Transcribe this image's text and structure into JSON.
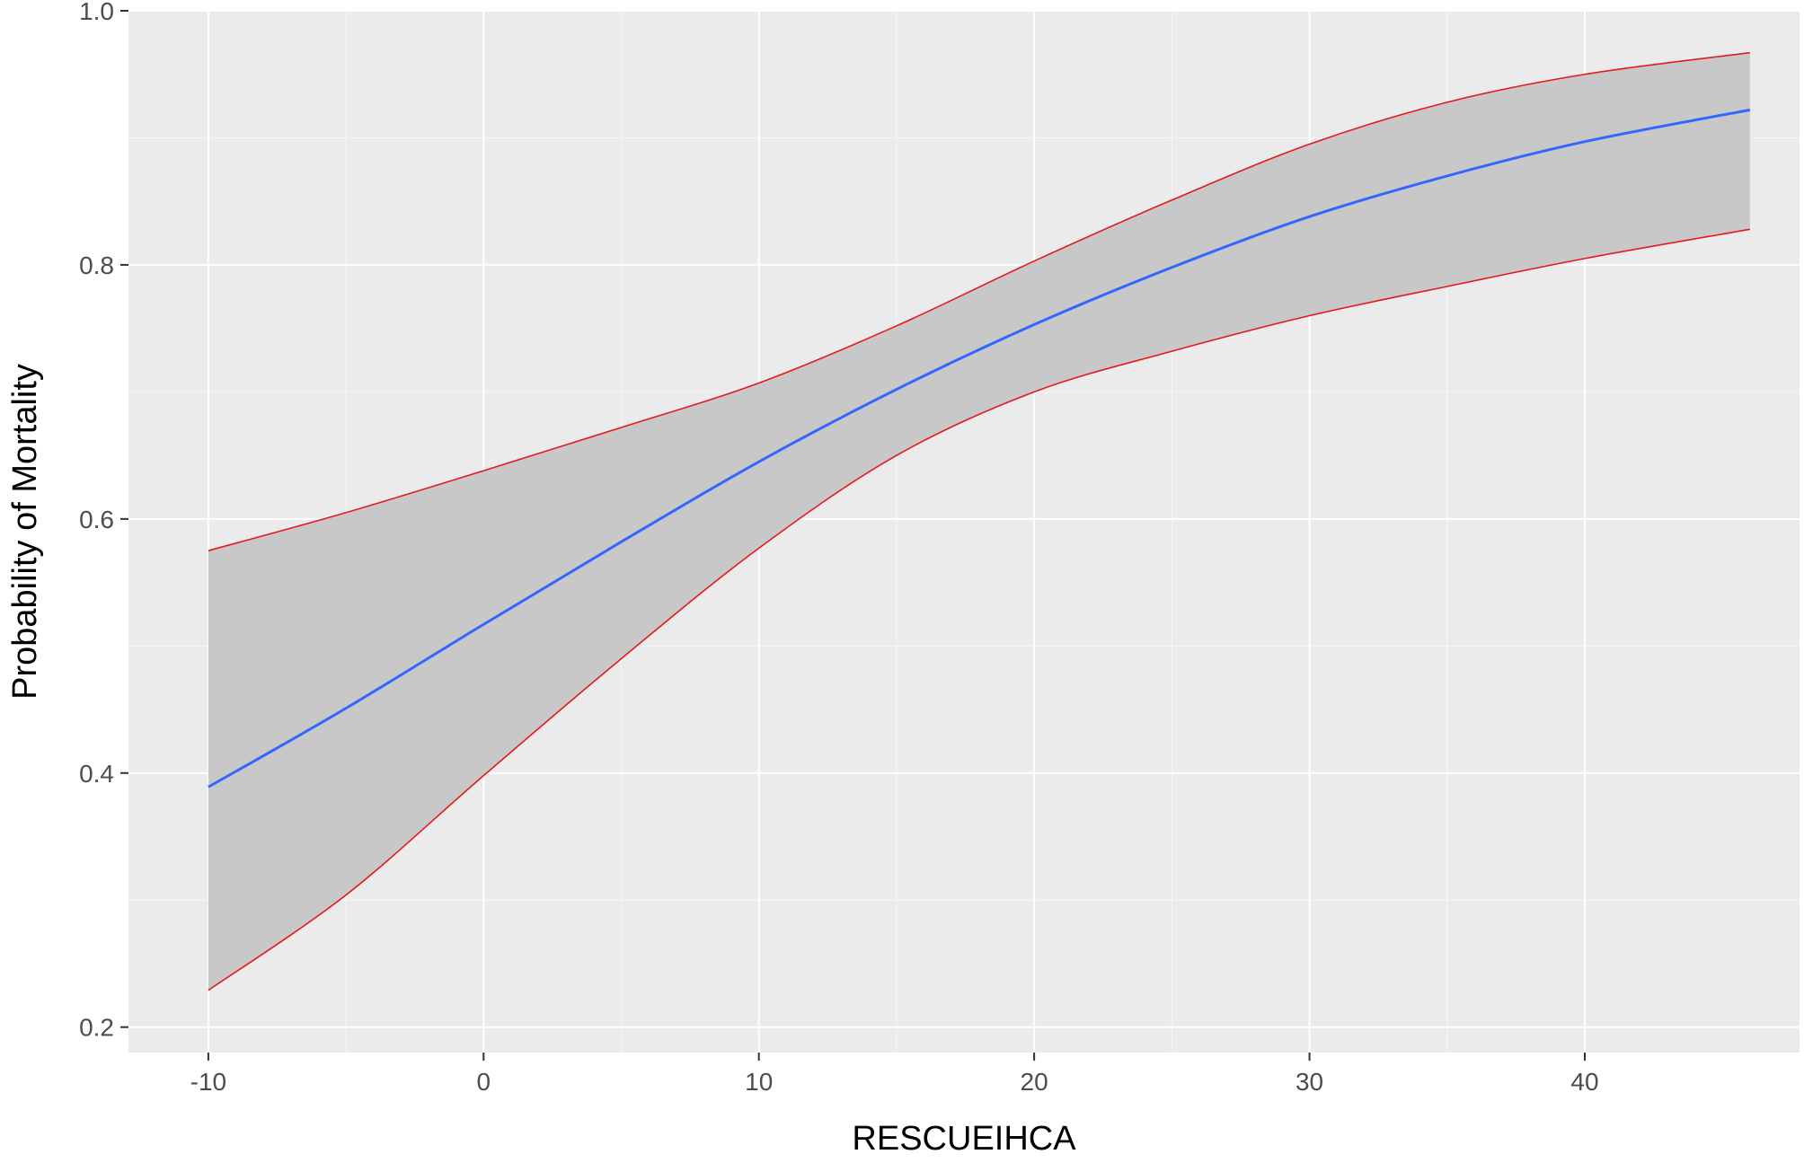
{
  "chart_data": {
    "type": "line",
    "xlabel": "RESCUEIHCA",
    "ylabel": "Probability of Mortality",
    "xlim": [
      -12.9,
      47.8
    ],
    "ylim": [
      0.18,
      1.0
    ],
    "x_ticks": [
      -10,
      0,
      10,
      20,
      30,
      40
    ],
    "x_tick_labels": [
      "-10",
      "0",
      "10",
      "20",
      "30",
      "40"
    ],
    "y_ticks": [
      0.2,
      0.4,
      0.6,
      0.8,
      1.0
    ],
    "y_tick_labels": [
      "0.2",
      "0.4",
      "0.6",
      "0.8",
      "1.0"
    ],
    "grid": true,
    "legend": "none",
    "series": [
      {
        "role": "fit",
        "color": "#3366ff",
        "x": [
          -10,
          -5,
          0,
          5,
          10,
          15,
          20,
          25,
          30,
          35,
          40,
          46
        ],
        "y": [
          0.389,
          0.451,
          0.517,
          0.582,
          0.645,
          0.702,
          0.753,
          0.798,
          0.838,
          0.87,
          0.897,
          0.922
        ]
      },
      {
        "role": "upper",
        "color": "#e31a1c",
        "x": [
          -10,
          -5,
          0,
          5,
          10,
          15,
          20,
          25,
          30,
          35,
          40,
          46
        ],
        "y": [
          0.575,
          0.605,
          0.638,
          0.672,
          0.707,
          0.752,
          0.803,
          0.851,
          0.895,
          0.928,
          0.95,
          0.967
        ]
      },
      {
        "role": "lower",
        "color": "#e31a1c",
        "x": [
          -10,
          -5,
          0,
          5,
          10,
          15,
          20,
          25,
          30,
          35,
          40,
          46
        ],
        "y": [
          0.229,
          0.304,
          0.398,
          0.49,
          0.577,
          0.65,
          0.7,
          0.732,
          0.76,
          0.783,
          0.805,
          0.828
        ]
      }
    ],
    "colors": {
      "panel": "#ebebeb",
      "grid_major": "#ffffff",
      "ribbon": "#c8c8c8",
      "tick_text": "#4d4d4d",
      "axis_title": "#000000"
    }
  }
}
